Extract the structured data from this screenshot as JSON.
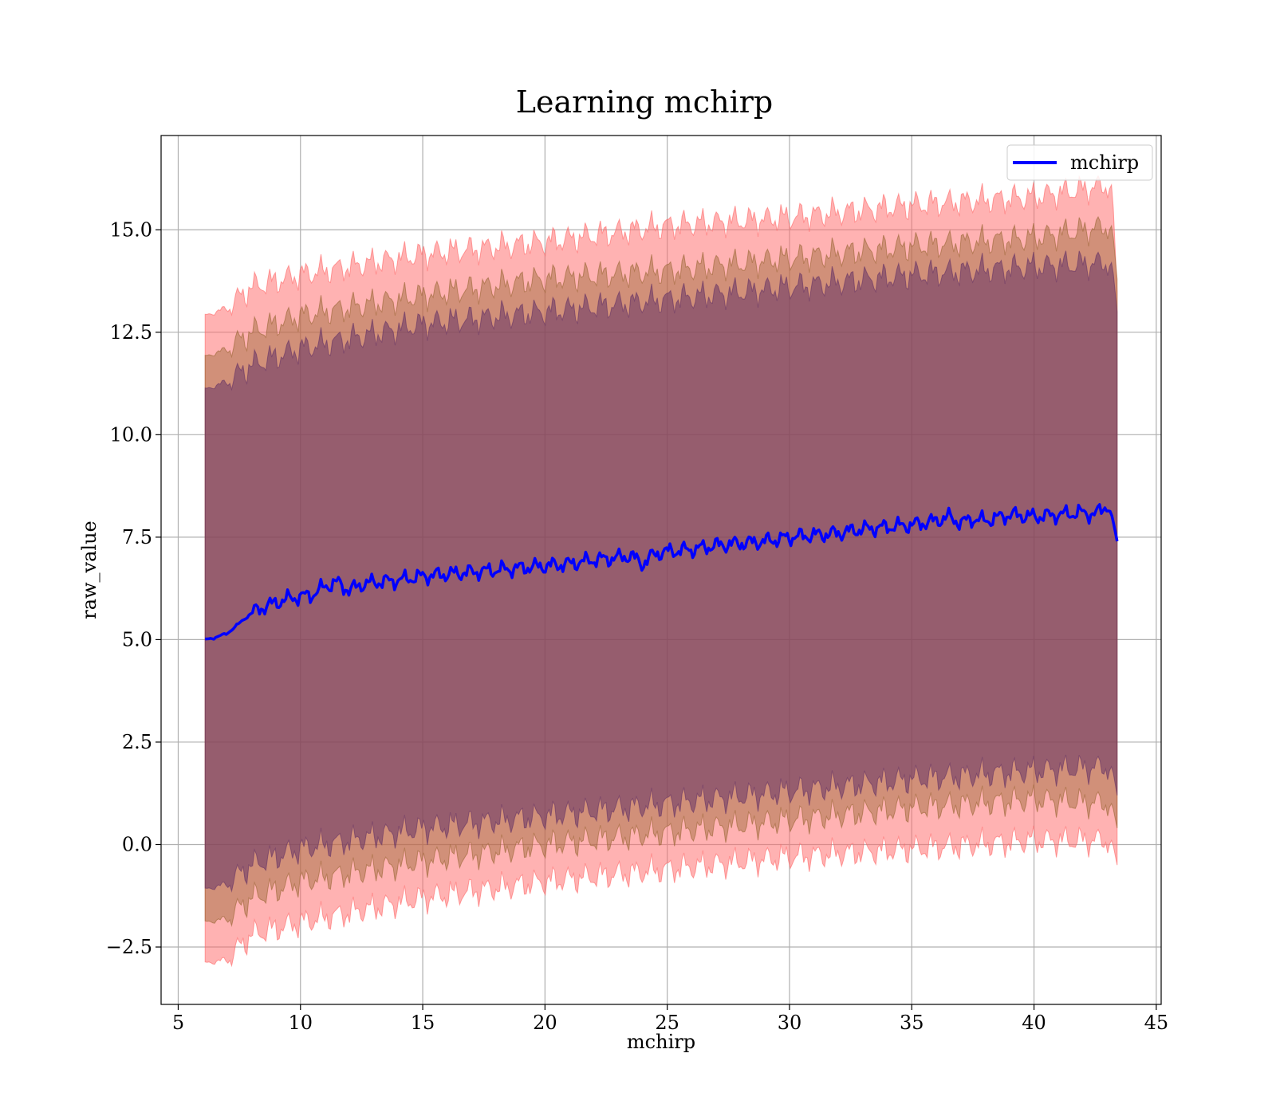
{
  "chart_data": {
    "type": "line",
    "title": "Learning mchirp",
    "xlabel": "mchirp",
    "ylabel": "raw_value",
    "xlim": [
      4.3,
      45.2
    ],
    "ylim": [
      -3.9,
      17.3
    ],
    "x_ticks": [
      5,
      10,
      15,
      20,
      25,
      30,
      35,
      40,
      45
    ],
    "x_tick_labels": [
      "5",
      "10",
      "15",
      "20",
      "25",
      "30",
      "35",
      "40",
      "45"
    ],
    "y_ticks": [
      -2.5,
      0.0,
      2.5,
      5.0,
      7.5,
      10.0,
      12.5,
      15.0
    ],
    "y_tick_labels": [
      "−2.5",
      "0.0",
      "2.5",
      "5.0",
      "7.5",
      "10.0",
      "12.5",
      "15.0"
    ],
    "grid": true,
    "legend_position": "top-right",
    "legend": [
      {
        "label": "mchirp",
        "color": "#0000ff"
      }
    ],
    "series": [
      {
        "name": "mchirp",
        "color": "#0000ff",
        "x": [
          6.1,
          6.5,
          7.0,
          7.5,
          8.0,
          8.5,
          9.0,
          9.5,
          10.0,
          10.5,
          11.0,
          11.5,
          12.0,
          12.5,
          13.0,
          14.0,
          15.0,
          16.0,
          17.0,
          18.0,
          19.0,
          20.0,
          21.0,
          22.0,
          23.0,
          23.5,
          24.0,
          24.5,
          25.0,
          26.0,
          27.0,
          28.0,
          29.0,
          30.0,
          31.0,
          32.0,
          33.0,
          34.0,
          35.0,
          36.0,
          36.5,
          37.0,
          37.5,
          38.0,
          39.0,
          40.0,
          41.0,
          42.0,
          42.5,
          43.0,
          43.2,
          43.4
        ],
        "y": [
          5.0,
          5.05,
          5.15,
          5.4,
          5.65,
          5.8,
          5.9,
          6.0,
          6.05,
          6.1,
          6.3,
          6.4,
          6.2,
          6.35,
          6.4,
          6.45,
          6.55,
          6.6,
          6.65,
          6.7,
          6.75,
          6.8,
          6.85,
          6.95,
          7.0,
          7.05,
          6.85,
          7.1,
          7.15,
          7.2,
          7.3,
          7.35,
          7.4,
          7.5,
          7.55,
          7.6,
          7.7,
          7.75,
          7.8,
          7.9,
          8.0,
          7.85,
          7.95,
          7.9,
          8.05,
          8.0,
          8.05,
          8.1,
          8.05,
          8.3,
          8.0,
          7.4
        ]
      }
    ],
    "bands": [
      {
        "color": "#ff6666",
        "opacity": 0.5,
        "x": [
          6.1,
          7.0,
          8.0,
          10.0,
          15.0,
          20.0,
          25.0,
          30.0,
          35.0,
          40.0,
          43.2,
          43.4
        ],
        "upper": [
          12.9,
          13.1,
          13.6,
          13.9,
          14.4,
          14.7,
          15.1,
          15.3,
          15.6,
          15.8,
          16.1,
          13.5
        ],
        "lower": [
          -2.9,
          -2.8,
          -2.2,
          -1.9,
          -1.3,
          -0.9,
          -0.6,
          -0.3,
          -0.1,
          0.1,
          0.1,
          -0.5
        ]
      },
      {
        "color": "#996633",
        "opacity": 0.45,
        "x": [
          6.1,
          7.0,
          8.0,
          10.0,
          15.0,
          20.0,
          25.0,
          30.0,
          35.0,
          40.0,
          43.2,
          43.4
        ],
        "upper": [
          11.9,
          12.1,
          12.5,
          12.9,
          13.4,
          13.8,
          14.0,
          14.3,
          14.6,
          14.8,
          15.1,
          13.8
        ],
        "lower": [
          -1.9,
          -1.8,
          -1.3,
          -0.9,
          -0.4,
          0.0,
          0.3,
          0.6,
          0.9,
          1.1,
          1.0,
          0.4
        ]
      },
      {
        "color": "#663366",
        "opacity": 0.55,
        "x": [
          6.1,
          7.0,
          8.0,
          10.0,
          15.0,
          20.0,
          25.0,
          30.0,
          35.0,
          40.0,
          43.2,
          43.4
        ],
        "upper": [
          11.1,
          11.3,
          11.7,
          12.1,
          12.7,
          13.0,
          13.3,
          13.6,
          13.9,
          14.1,
          14.2,
          13.0
        ],
        "lower": [
          -1.1,
          -0.95,
          -0.5,
          -0.1,
          0.4,
          0.7,
          1.0,
          1.3,
          1.6,
          1.8,
          1.9,
          1.2
        ]
      }
    ]
  }
}
